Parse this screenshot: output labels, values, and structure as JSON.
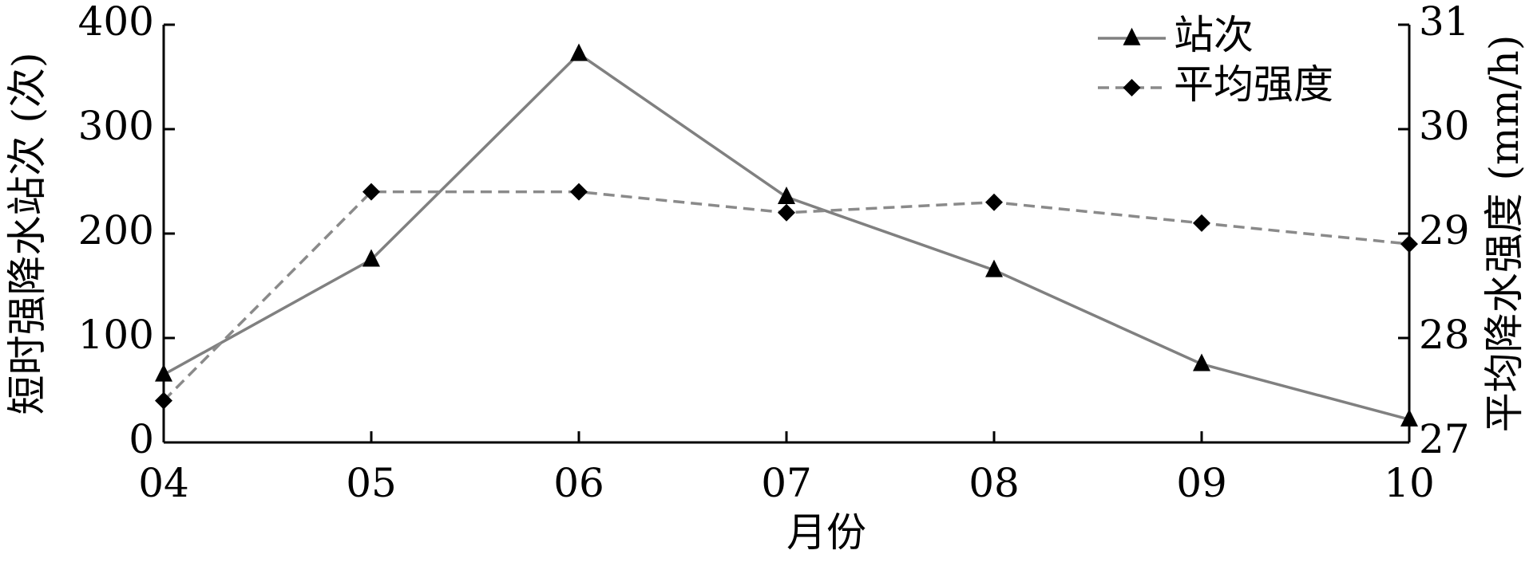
{
  "chart_data": {
    "type": "line",
    "xlabel": "月份",
    "ylabel": "短时强降水站次 (次)",
    "y2label": "平均降水强度 (mm/h)",
    "categories": [
      "04",
      "05",
      "06",
      "07",
      "08",
      "09",
      "10"
    ],
    "series": [
      {
        "name": "站次",
        "color": "#808080",
        "marker": "triangle",
        "linestyle": "solid",
        "values": [
          65,
          175,
          372,
          235,
          165,
          75,
          22
        ]
      },
      {
        "name": "平均强度",
        "color": "#8a8a8a",
        "marker": "diamond",
        "linestyle": "dashed",
        "axis": "y2",
        "values": [
          27.4,
          29.4,
          29.4,
          29.2,
          29.3,
          29.1,
          28.9
        ]
      }
    ],
    "ylim": [
      0,
      400
    ],
    "yticks": [
      0,
      100,
      200,
      300,
      400
    ],
    "y2lim": [
      27,
      31
    ],
    "y2ticks": [
      27,
      28,
      29,
      30,
      31
    ],
    "legend": "upper right",
    "grid": false
  }
}
